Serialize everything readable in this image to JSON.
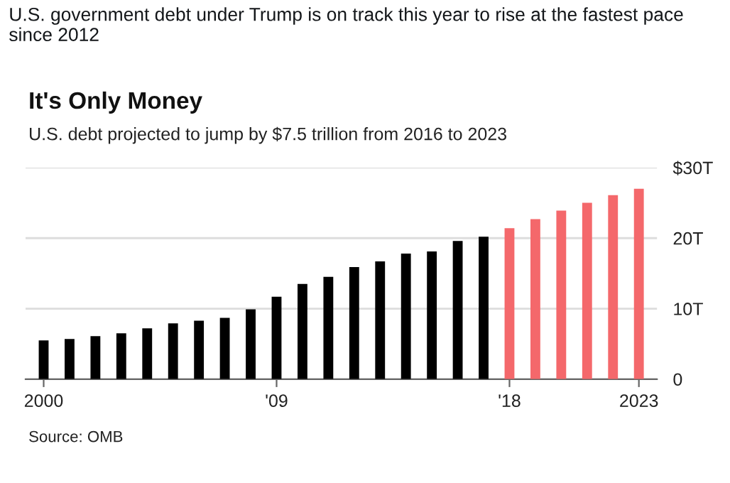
{
  "chart_data": {
    "type": "bar",
    "title": "It's Only Money",
    "subtitle": "U.S. debt projected to jump by $7.5 trillion from 2016 to 2023",
    "annotations": [
      "U.S. government debt under Trump is on track this year to rise at the fastest pace since 2012",
      "Source: OMB"
    ],
    "categories": [
      "2000",
      null,
      null,
      null,
      null,
      null,
      null,
      null,
      null,
      "'09",
      null,
      null,
      null,
      null,
      null,
      null,
      null,
      null,
      "'18",
      null,
      null,
      null,
      null,
      "2023"
    ],
    "values": [
      5.5,
      5.7,
      6.1,
      6.5,
      7.2,
      7.9,
      8.3,
      8.7,
      9.9,
      11.7,
      13.5,
      14.5,
      15.9,
      16.7,
      17.8,
      18.1,
      19.6,
      20.2,
      21.4,
      22.7,
      23.9,
      25.0,
      26.1,
      27.0
    ],
    "colors": [
      "#000000",
      "#000000",
      "#000000",
      "#000000",
      "#000000",
      "#000000",
      "#000000",
      "#000000",
      "#000000",
      "#000000",
      "#000000",
      "#000000",
      "#000000",
      "#000000",
      "#000000",
      "#000000",
      "#000000",
      "#000000",
      "#f4686b",
      "#f4686b",
      "#f4686b",
      "#f4686b",
      "#f4686b",
      "#f4686b"
    ],
    "ylim": [
      0,
      30
    ],
    "yticks": [
      0,
      {
        "value": 10,
        "label": "10T"
      },
      {
        "value": 20,
        "label": "20T"
      },
      {
        "value": 30,
        "label": "$30T"
      }
    ],
    "grid": "y"
  }
}
